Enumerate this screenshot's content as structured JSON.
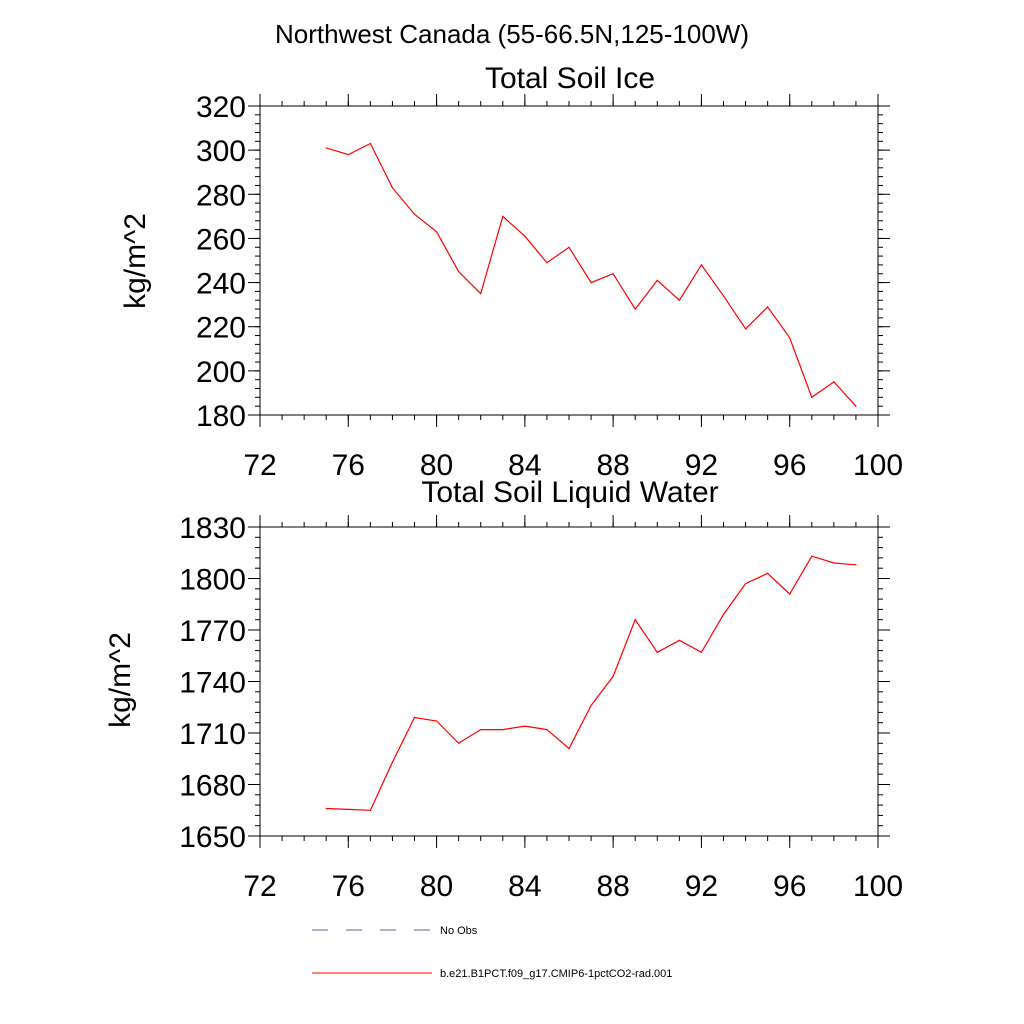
{
  "figure": {
    "title": "Northwest Canada (55-66.5N,125-100W)"
  },
  "chart_data": [
    {
      "type": "line",
      "title": "Total Soil Ice",
      "xlabel": "",
      "ylabel": "kg/m^2",
      "xlim": [
        72,
        100
      ],
      "ylim": [
        180,
        320
      ],
      "x_ticks": [
        72,
        76,
        80,
        84,
        88,
        92,
        96,
        100
      ],
      "y_ticks": [
        180,
        200,
        220,
        240,
        260,
        280,
        300,
        320
      ],
      "x_tick_labels": [
        "72",
        "76",
        "80",
        "84",
        "88",
        "92",
        "96",
        "100"
      ],
      "y_tick_labels": [
        "180",
        "200",
        "220",
        "240",
        "260",
        "280",
        "300",
        "320"
      ],
      "grid": false,
      "series": [
        {
          "name": "b.e21.B1PCT.f09_g17.CMIP6-1pctCO2-rad.001",
          "color": "#ff0000",
          "x": [
            75,
            76,
            77,
            78,
            79,
            80,
            81,
            82,
            83,
            84,
            85,
            86,
            87,
            88,
            89,
            90,
            91,
            92,
            93,
            94,
            95,
            96,
            97,
            98,
            99
          ],
          "y": [
            301,
            298,
            303,
            283,
            271,
            263,
            245,
            235,
            270,
            261,
            249,
            256,
            240,
            244,
            228,
            241,
            232,
            248,
            234,
            219,
            229,
            215,
            188,
            195,
            184
          ]
        }
      ]
    },
    {
      "type": "line",
      "title": "Total Soil Liquid Water",
      "xlabel": "",
      "ylabel": "kg/m^2",
      "xlim": [
        72,
        100
      ],
      "ylim": [
        1650,
        1830
      ],
      "x_ticks": [
        72,
        76,
        80,
        84,
        88,
        92,
        96,
        100
      ],
      "y_ticks": [
        1650,
        1680,
        1710,
        1740,
        1770,
        1800,
        1830
      ],
      "x_tick_labels": [
        "72",
        "76",
        "80",
        "84",
        "88",
        "92",
        "96",
        "100"
      ],
      "y_tick_labels": [
        "1650",
        "1680",
        "1710",
        "1740",
        "1770",
        "1800",
        "1830"
      ],
      "grid": false,
      "series": [
        {
          "name": "b.e21.B1PCT.f09_g17.CMIP6-1pctCO2-rad.001",
          "color": "#ff0000",
          "x": [
            75,
            76,
            77,
            78,
            79,
            80,
            81,
            82,
            83,
            84,
            85,
            86,
            87,
            88,
            89,
            90,
            91,
            92,
            93,
            94,
            95,
            96,
            97,
            98,
            99
          ],
          "y": [
            1666,
            1665.5,
            1665,
            1693,
            1719,
            1717,
            1704,
            1712,
            1712,
            1714,
            1712,
            1701,
            1726,
            1743,
            1776,
            1757,
            1764,
            1757,
            1779,
            1797,
            1803,
            1791,
            1813,
            1809,
            1808
          ]
        }
      ]
    }
  ],
  "legend": {
    "placement": "bottom",
    "items": [
      {
        "label": "No Obs",
        "color": "#5a6a9a",
        "style": "dashed"
      },
      {
        "label": "b.e21.B1PCT.f09_g17.CMIP6-1pctCO2-rad.001",
        "color": "#ff0000",
        "style": "solid"
      }
    ]
  }
}
